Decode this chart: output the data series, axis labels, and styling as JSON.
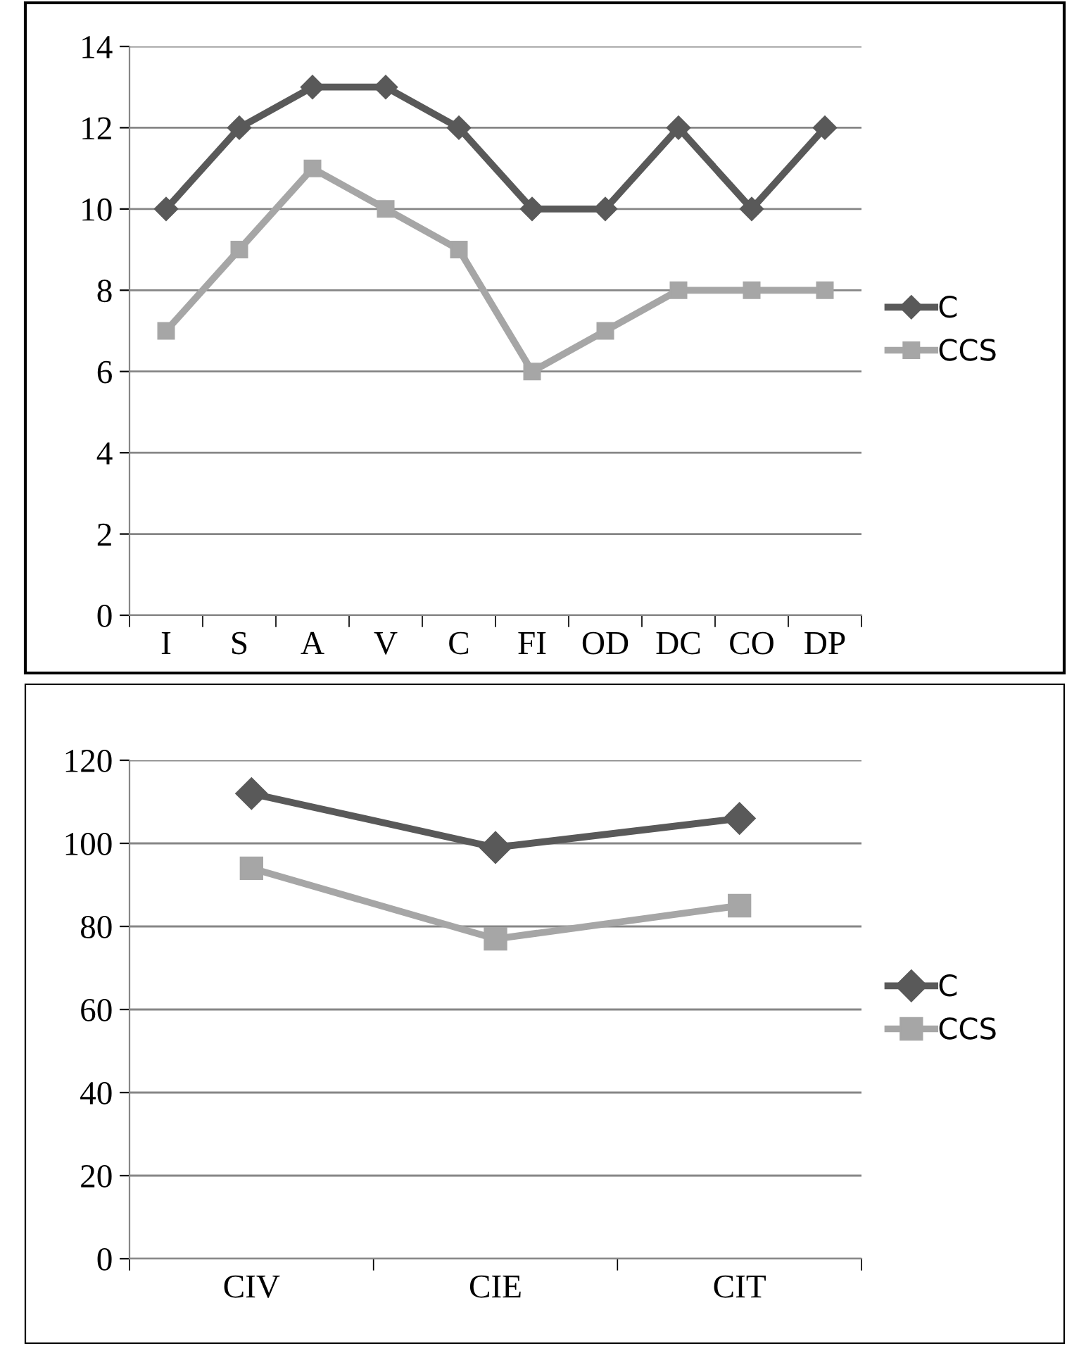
{
  "chart_data": [
    {
      "type": "line",
      "categories": [
        "I",
        "S",
        "A",
        "V",
        "C",
        "FI",
        "OD",
        "DC",
        "CO",
        "DP"
      ],
      "ylim": [
        0,
        14
      ],
      "yticks": [
        0,
        2,
        4,
        6,
        8,
        10,
        12,
        14
      ],
      "grid": "y",
      "legend": "right",
      "series": [
        {
          "name": "C",
          "color": "#595959",
          "marker": "diamond",
          "values": [
            10,
            12,
            13,
            13,
            12,
            10,
            10,
            12,
            10,
            12
          ]
        },
        {
          "name": "CCS",
          "color": "#a6a6a6",
          "marker": "square",
          "values": [
            7,
            9,
            11,
            10,
            9,
            6,
            7,
            8,
            8,
            8
          ]
        }
      ]
    },
    {
      "type": "line",
      "categories": [
        "CIV",
        "CIE",
        "CIT"
      ],
      "ylim": [
        0,
        120
      ],
      "yticks": [
        0,
        20,
        40,
        60,
        80,
        100,
        120
      ],
      "grid": "y",
      "legend": "right",
      "series": [
        {
          "name": "C",
          "color": "#595959",
          "marker": "diamond",
          "values": [
            112,
            99,
            106
          ]
        },
        {
          "name": "CCS",
          "color": "#a6a6a6",
          "marker": "square",
          "values": [
            94,
            77,
            85
          ]
        }
      ]
    }
  ]
}
